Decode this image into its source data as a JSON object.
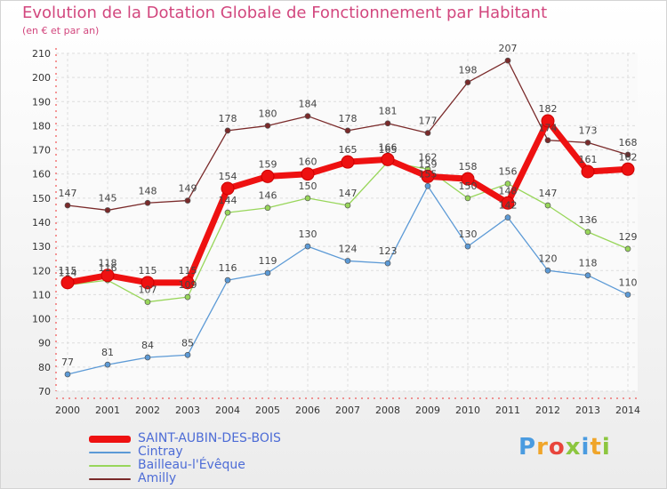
{
  "header": {
    "title": "Evolution de la Dotation Globale de Fonctionnement par Habitant",
    "subtitle": "(en € et par an)"
  },
  "brand": {
    "letters": [
      "P",
      "r",
      "o",
      "x",
      "i",
      "t",
      "i"
    ],
    "colors": [
      "#4a9be0",
      "#f0a52a",
      "#e8453c",
      "#8cc63f",
      "#4a9be0",
      "#f0a52a",
      "#8cc63f"
    ]
  },
  "chart_data": {
    "type": "line",
    "title": "Evolution de la Dotation Globale de Fonctionnement par Habitant",
    "subtitle": "(en € et par an)",
    "xlabel": "",
    "ylabel": "",
    "ylim": [
      70,
      210
    ],
    "yticks": [
      70,
      80,
      90,
      100,
      110,
      120,
      130,
      140,
      150,
      160,
      170,
      180,
      190,
      200,
      210
    ],
    "grid": true,
    "legend_position": "bottom-left",
    "x": [
      "2000",
      "2001",
      "2002",
      "2003",
      "2004",
      "2005",
      "2006",
      "2007",
      "2008",
      "2009",
      "2010",
      "2011",
      "2012",
      "2013",
      "2014"
    ],
    "series": [
      {
        "name": "Amilly",
        "color": "#7a2a2a",
        "values": [
          147,
          145,
          148,
          149,
          178,
          180,
          184,
          178,
          181,
          177,
          198,
          207,
          174,
          173,
          168
        ],
        "labels": [
          "147",
          "145",
          "148",
          "149",
          "178",
          "180",
          "184",
          "178",
          "181",
          "177",
          "198",
          "207",
          "174",
          "173",
          "168"
        ]
      },
      {
        "name": "Bailleau-l'Évêque",
        "color": "#98d65a",
        "values": [
          114,
          116,
          107,
          109,
          144,
          146,
          150,
          147,
          165,
          162,
          150,
          156,
          147,
          136,
          129
        ],
        "labels": [
          "114",
          "116",
          "107",
          "109",
          "144",
          "146",
          "150",
          "147",
          "165",
          "162",
          "150",
          "156",
          "147",
          "136",
          "129"
        ]
      },
      {
        "name": "Cintray",
        "color": "#5c9ad6",
        "values": [
          77,
          81,
          84,
          85,
          116,
          119,
          130,
          124,
          123,
          155,
          130,
          142,
          120,
          118,
          110
        ],
        "labels": [
          "77",
          "81",
          "84",
          "85",
          "116",
          "119",
          "130",
          "124",
          "123",
          "155",
          "130",
          "142",
          "120",
          "118",
          "110"
        ]
      },
      {
        "name": "SAINT-AUBIN-DES-BOIS",
        "color": "#ee1111",
        "values": [
          115,
          118,
          115,
          115,
          154,
          159,
          160,
          165,
          166,
          159,
          158,
          148,
          182,
          161,
          162
        ],
        "labels": [
          "115",
          "118",
          "115",
          "115",
          "154",
          "159",
          "160",
          "165",
          "166",
          "159",
          "158",
          "148",
          "182",
          "161",
          "162"
        ]
      }
    ],
    "legend": [
      "SAINT-AUBIN-DES-BOIS",
      "Cintray",
      "Bailleau-l'Évêque",
      "Amilly"
    ]
  }
}
